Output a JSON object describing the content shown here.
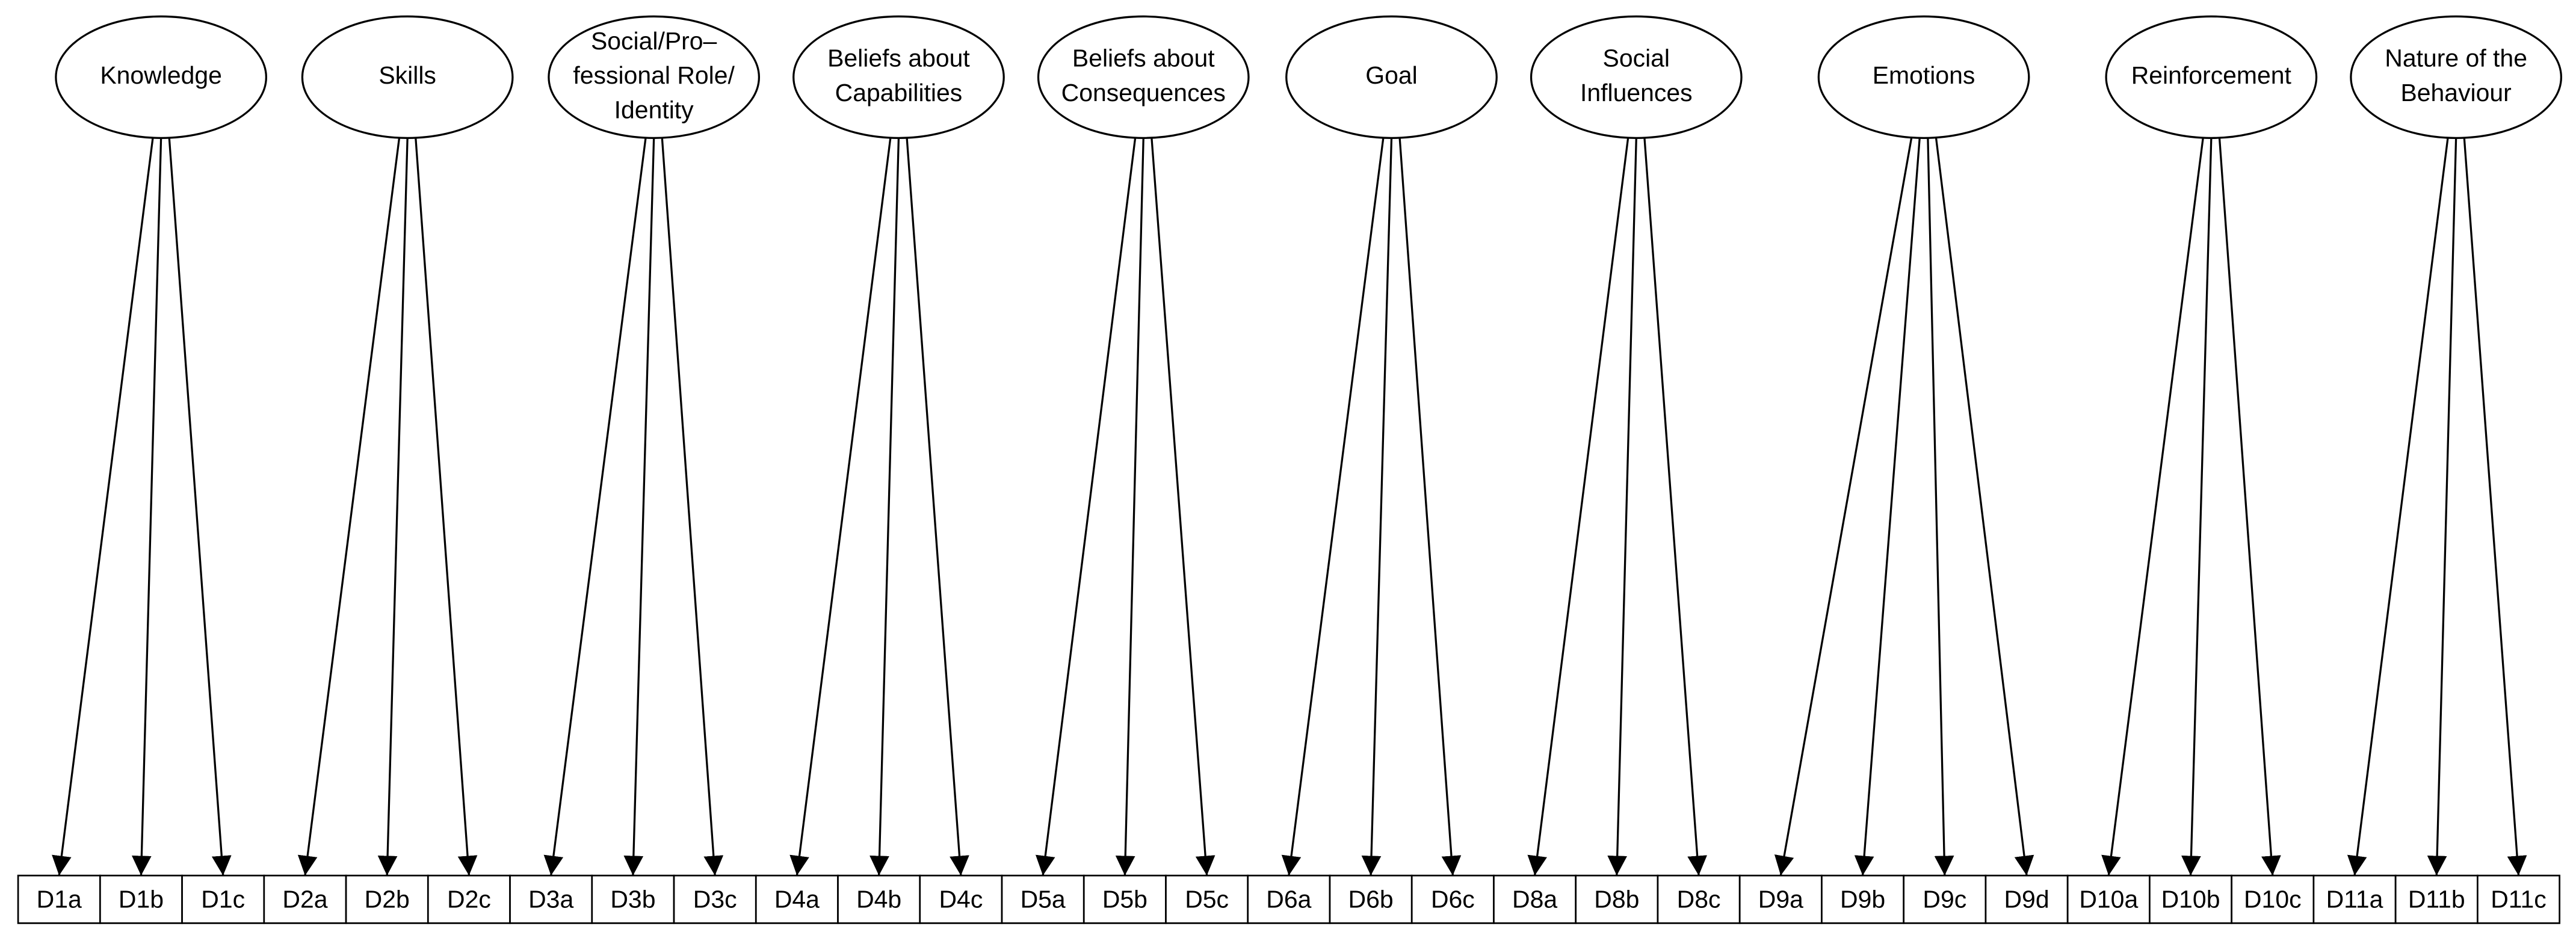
{
  "factors": [
    {
      "label": [
        "Knowledge"
      ],
      "items": [
        "D1a",
        "D1b",
        "D1c"
      ]
    },
    {
      "label": [
        "Skills"
      ],
      "items": [
        "D2a",
        "D2b",
        "D2c"
      ]
    },
    {
      "label": [
        "Social/Pro–",
        "fessional Role/",
        "Identity"
      ],
      "items": [
        "D3a",
        "D3b",
        "D3c"
      ]
    },
    {
      "label": [
        "Beliefs about",
        "Capabilities"
      ],
      "items": [
        "D4a",
        "D4b",
        "D4c"
      ]
    },
    {
      "label": [
        "Beliefs about",
        "Consequences"
      ],
      "items": [
        "D5a",
        "D5b",
        "D5c"
      ]
    },
    {
      "label": [
        "Goal"
      ],
      "items": [
        "D6a",
        "D6b",
        "D6c"
      ]
    },
    {
      "label": [
        "Social",
        "Influences"
      ],
      "items": [
        "D8a",
        "D8b",
        "D8c"
      ]
    },
    {
      "label": [
        "Emotions"
      ],
      "items": [
        "D9a",
        "D9b",
        "D9c",
        "D9d"
      ]
    },
    {
      "label": [
        "Reinforcement"
      ],
      "items": [
        "D10a",
        "D10b",
        "D10c"
      ]
    },
    {
      "label": [
        "Nature of the",
        "Behaviour"
      ],
      "items": [
        "D11a",
        "D11b",
        "D11c"
      ]
    }
  ]
}
